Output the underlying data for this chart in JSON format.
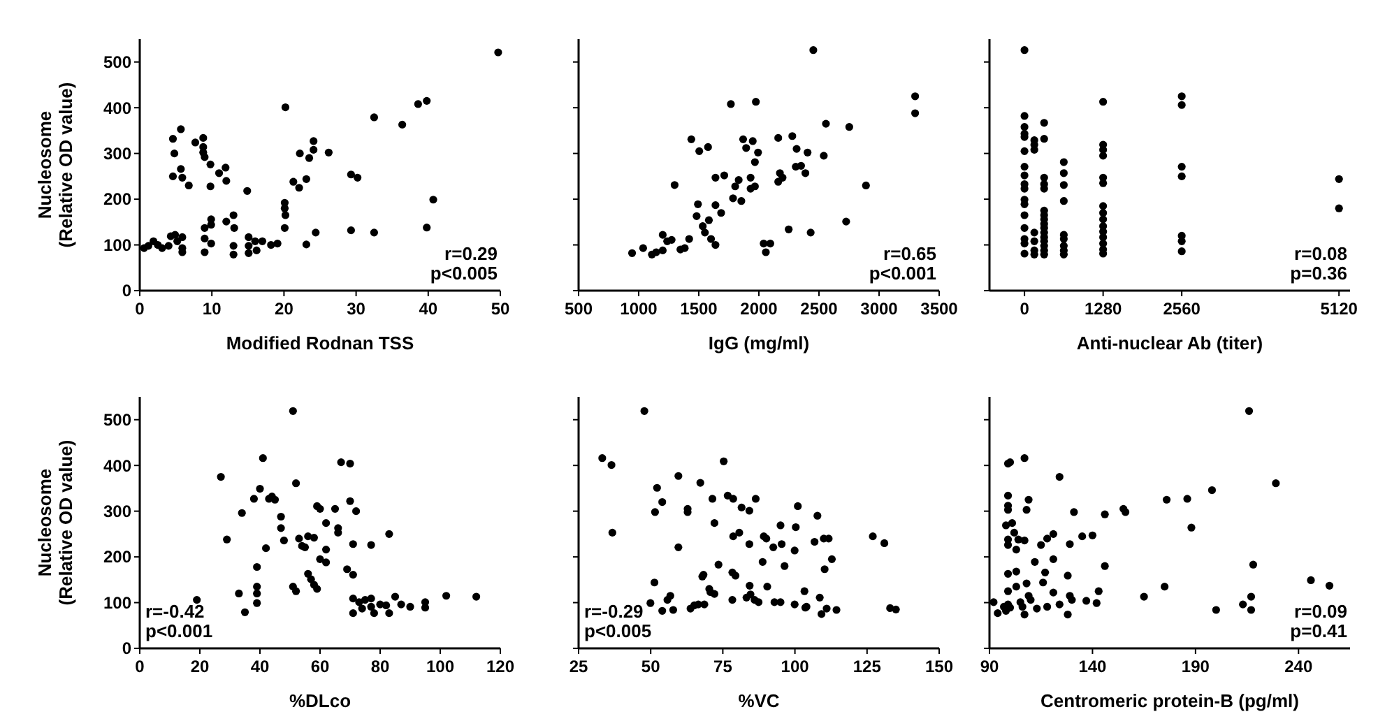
{
  "chart_data": [
    {
      "type": "scatter",
      "xlabel": "Modified Rodnan TSS",
      "ylabel": "Nucleosome (Relative OD value)",
      "color": "#000000",
      "marker": "circle",
      "xlim": [
        0,
        50
      ],
      "xticks": [
        0,
        10,
        20,
        30,
        40,
        50
      ],
      "ylim": [
        0,
        550
      ],
      "yticks": [
        0,
        100,
        200,
        300,
        400,
        500
      ],
      "annotations": [
        "r=0.29",
        "p<0.005"
      ],
      "x": [
        0.6,
        1.2,
        1.9,
        2.5,
        3.1,
        4.0,
        4.3,
        4.9,
        5.2,
        5.9,
        5.9,
        5.9,
        4.6,
        4.8,
        4.6,
        5.7,
        5.7,
        5.9,
        6.8,
        7.7,
        8.8,
        8.8,
        8.8,
        9.0,
        9.8,
        9.8,
        11.0,
        11.9,
        12.0,
        14.9,
        9.0,
        9.0,
        9.0,
        9.9,
        9.9,
        9.9,
        12.0,
        13.0,
        13.1,
        13.0,
        13.0,
        15.1,
        15.1,
        15.1,
        16.0,
        16.2,
        17.0,
        18.2,
        19.1,
        20.1,
        20.1,
        20.2,
        20.1,
        20.2,
        22.2,
        23.5,
        24.1,
        24.1,
        26.2,
        21.3,
        22.1,
        23.1,
        23.1,
        24.4,
        29.3,
        30.2,
        29.3,
        32.5,
        32.5,
        36.4,
        38.6,
        39.8,
        39.8,
        40.7,
        49.7
      ],
      "values": [
        93,
        98,
        108,
        100,
        93,
        98,
        119,
        122,
        108,
        117,
        93,
        84,
        332,
        300,
        250,
        353,
        266,
        247,
        230,
        324,
        334,
        314,
        302,
        292,
        276,
        228,
        257,
        269,
        240,
        218,
        137,
        114,
        84,
        156,
        144,
        103,
        151,
        165,
        137,
        98,
        79,
        117,
        98,
        82,
        108,
        88,
        108,
        100,
        103,
        137,
        180,
        165,
        192,
        401,
        300,
        290,
        327,
        308,
        302,
        238,
        225,
        244,
        101,
        127,
        254,
        247,
        132,
        127,
        379,
        363,
        408,
        415,
        138,
        199,
        521
      ]
    },
    {
      "type": "scatter",
      "xlabel": "IgG (mg/ml)",
      "color": "#000000",
      "marker": "circle",
      "xlim": [
        500,
        3500
      ],
      "xticks": [
        500,
        1000,
        1500,
        2000,
        2500,
        3000,
        3500
      ],
      "ylim": [
        0,
        550
      ],
      "yticks": [
        0,
        100,
        200,
        300,
        400,
        500
      ],
      "tick_labels": "x",
      "annotations": [
        "r=0.65",
        "p<0.001"
      ],
      "x": [
        945,
        1037,
        1110,
        1146,
        1200,
        1200,
        1237,
        1274,
        1347,
        1383,
        1420,
        1299,
        1438,
        1504,
        1577,
        1493,
        1482,
        1533,
        1551,
        1584,
        1602,
        1639,
        1639,
        1686,
        1639,
        1712,
        1803,
        1832,
        1785,
        1854,
        1767,
        1869,
        1894,
        1931,
        1931,
        1967,
        1949,
        1993,
        1967,
        1975,
        2040,
        2095,
        2058,
        2161,
        2175,
        2161,
        2197,
        2248,
        2278,
        2314,
        2307,
        2351,
        2387,
        2405,
        2431,
        2453,
        2540,
        2558,
        2726,
        2752,
        2891,
        3300,
        3300
      ],
      "values": [
        82,
        93,
        79,
        84,
        88,
        122,
        108,
        111,
        90,
        93,
        113,
        231,
        331,
        305,
        314,
        189,
        163,
        141,
        127,
        154,
        113,
        100,
        187,
        170,
        247,
        252,
        228,
        242,
        202,
        196,
        408,
        331,
        312,
        247,
        223,
        228,
        327,
        302,
        281,
        413,
        103,
        103,
        84,
        334,
        257,
        238,
        247,
        134,
        338,
        310,
        271,
        273,
        257,
        302,
        127,
        526,
        295,
        365,
        151,
        358,
        230,
        425,
        388
      ]
    },
    {
      "type": "scatter",
      "xlabel": "Anti-nuclear Ab (titer)",
      "color": "#000000",
      "marker": "circle",
      "xlim": [
        -570,
        5300
      ],
      "xticks": [
        0,
        1280,
        2560,
        5120
      ],
      "ylim": [
        0,
        550
      ],
      "yticks": [
        0,
        100,
        200,
        300,
        400,
        500
      ],
      "tick_labels": "x",
      "annotations": [
        "r=0.08",
        "p=0.36"
      ],
      "x": [
        0,
        0,
        0,
        0,
        0,
        0,
        0,
        0,
        0,
        0,
        0,
        0,
        0,
        0,
        0,
        0,
        0,
        160,
        160,
        160,
        160,
        160,
        160,
        160,
        320,
        320,
        320,
        320,
        320,
        320,
        320,
        320,
        320,
        320,
        320,
        320,
        320,
        320,
        320,
        320,
        640,
        640,
        640,
        640,
        640,
        640,
        640,
        640,
        640,
        1280,
        1280,
        1280,
        1280,
        1280,
        1280,
        1280,
        1280,
        1280,
        1280,
        1280,
        1280,
        1280,
        1280,
        1280,
        2560,
        2560,
        2560,
        2560,
        2560,
        2560,
        2560,
        5120,
        5120
      ],
      "values": [
        526,
        382,
        358,
        343,
        336,
        305,
        271,
        252,
        233,
        223,
        199,
        189,
        165,
        137,
        113,
        103,
        81,
        329,
        308,
        319,
        127,
        108,
        88,
        79,
        367,
        332,
        247,
        233,
        223,
        175,
        165,
        156,
        146,
        137,
        127,
        117,
        108,
        98,
        88,
        79,
        281,
        257,
        231,
        196,
        122,
        113,
        98,
        88,
        79,
        413,
        319,
        308,
        295,
        247,
        235,
        185,
        170,
        156,
        141,
        129,
        117,
        103,
        90,
        81,
        425,
        406,
        271,
        250,
        120,
        108,
        86,
        244,
        180
      ]
    },
    {
      "type": "scatter",
      "xlabel": "%DLco",
      "ylabel": "Nucleosome (Relative OD value)",
      "color": "#000000",
      "marker": "circle",
      "xlim": [
        0,
        120
      ],
      "xticks": [
        0,
        20,
        40,
        60,
        80,
        100,
        120
      ],
      "ylim": [
        0,
        550
      ],
      "yticks": [
        0,
        100,
        200,
        300,
        400,
        500
      ],
      "annotations": [
        "r=-0.42",
        "p<0.001"
      ],
      "x": [
        19,
        27,
        29,
        33,
        34,
        35,
        38,
        39,
        39,
        39,
        39,
        40,
        41,
        42,
        43,
        44,
        45,
        47,
        47,
        48,
        51,
        51,
        52,
        52,
        53,
        54,
        55,
        56,
        58,
        56,
        57,
        58,
        59,
        59,
        60,
        60,
        62,
        62,
        62,
        65,
        66,
        66,
        67,
        70,
        70,
        69,
        71,
        71,
        72,
        71,
        71,
        73,
        74,
        75,
        77,
        77,
        78,
        77,
        80,
        83,
        82,
        83,
        85,
        87,
        90,
        95,
        95,
        102,
        112
      ],
      "values": [
        106,
        375,
        238,
        120,
        296,
        79,
        327,
        120,
        178,
        99,
        135,
        349,
        416,
        219,
        327,
        332,
        325,
        288,
        263,
        236,
        519,
        135,
        125,
        361,
        240,
        224,
        221,
        245,
        242,
        163,
        151,
        139,
        130,
        311,
        305,
        195,
        216,
        274,
        188,
        305,
        263,
        253,
        407,
        404,
        322,
        173,
        228,
        161,
        300,
        109,
        77,
        101,
        87,
        106,
        91,
        109,
        77,
        226,
        96,
        77,
        94,
        250,
        113,
        96,
        91,
        101,
        89,
        115,
        113
      ]
    },
    {
      "type": "scatter",
      "xlabel": "%VC",
      "color": "#000000",
      "marker": "circle",
      "xlim": [
        25,
        150
      ],
      "xticks": [
        25,
        50,
        75,
        100,
        125,
        150
      ],
      "ylim": [
        0,
        550
      ],
      "yticks": [
        0,
        100,
        200,
        300,
        400,
        500
      ],
      "tick_labels": "x",
      "annotations": [
        "r=-0.29",
        "p<0.005"
      ],
      "x": [
        33.2,
        36.4,
        36.7,
        47.8,
        49.9,
        51.3,
        51.5,
        52.2,
        54,
        54,
        55.8,
        56.8,
        57.8,
        59.6,
        59.6,
        62.8,
        62.8,
        63.8,
        65.1,
        66.5,
        68.6,
        67.2,
        67.9,
        68.3,
        70.3,
        70.7,
        72.1,
        71.4,
        72.1,
        73.5,
        75.3,
        76.7,
        78.3,
        78.6,
        78.3,
        79.4,
        78.6,
        80.7,
        81.5,
        84.2,
        84.2,
        84.3,
        84.6,
        86,
        86.4,
        83.2,
        87.4,
        88.8,
        89.2,
        90.1,
        90.4,
        92.5,
        92.9,
        95,
        95.4,
        95,
        96.4,
        99.9,
        99.9,
        100.3,
        101,
        103.3,
        103.6,
        104,
        106.8,
        107.8,
        108.6,
        109.2,
        110,
        111.7,
        110.3,
        111,
        112.8,
        114.4,
        127,
        131,
        133,
        135
      ],
      "values": [
        416,
        401,
        253,
        519,
        99,
        144,
        298,
        351,
        320,
        82,
        106,
        115,
        84,
        377,
        221,
        305,
        298,
        87,
        94,
        96,
        96,
        362,
        157,
        161,
        130,
        123,
        119,
        327,
        274,
        183,
        409,
        334,
        106,
        245,
        166,
        159,
        327,
        253,
        308,
        228,
        301,
        137,
        118,
        106,
        327,
        111,
        101,
        189,
        245,
        240,
        135,
        221,
        101,
        269,
        228,
        101,
        180,
        214,
        96,
        265,
        311,
        125,
        89,
        91,
        233,
        290,
        111,
        75,
        240,
        240,
        173,
        87,
        195,
        84,
        245,
        230,
        88,
        85
      ]
    },
    {
      "type": "scatter",
      "xlabel": "Centromeric protein-B (pg/ml)",
      "color": "#000000",
      "marker": "circle",
      "xlim": [
        90,
        265
      ],
      "xticks": [
        90,
        140,
        190,
        240
      ],
      "ylim": [
        0,
        550
      ],
      "yticks": [
        0,
        100,
        200,
        300,
        400,
        500
      ],
      "tick_labels": "x",
      "annotations": [
        "r=0.09",
        "p=0.41"
      ],
      "x": [
        92,
        94,
        97,
        98,
        99,
        100,
        99,
        99,
        99,
        99,
        98,
        99,
        99,
        99,
        99,
        100,
        101,
        102,
        104,
        103,
        103,
        103,
        106,
        107,
        105,
        107,
        109,
        108,
        107,
        108,
        109,
        110,
        112,
        113,
        115,
        116,
        117,
        118,
        118,
        121,
        121,
        121,
        124,
        124,
        128,
        128,
        129,
        129,
        130,
        131,
        135,
        137,
        140,
        142,
        143,
        146,
        146,
        155,
        156,
        165,
        176,
        175,
        186,
        188,
        198,
        200,
        213,
        217,
        217,
        216,
        218,
        229,
        246,
        255
      ],
      "values": [
        101,
        77,
        91,
        82,
        96,
        89,
        125,
        163,
        226,
        238,
        269,
        303,
        312,
        334,
        404,
        407,
        274,
        253,
        238,
        216,
        168,
        135,
        91,
        74,
        101,
        416,
        325,
        303,
        236,
        142,
        115,
        106,
        189,
        87,
        226,
        144,
        166,
        240,
        91,
        195,
        250,
        122,
        375,
        96,
        159,
        74,
        115,
        228,
        106,
        298,
        245,
        104,
        247,
        99,
        125,
        293,
        180,
        305,
        298,
        113,
        325,
        135,
        327,
        264,
        346,
        84,
        96,
        113,
        84,
        519,
        183,
        361,
        149,
        137
      ]
    }
  ]
}
